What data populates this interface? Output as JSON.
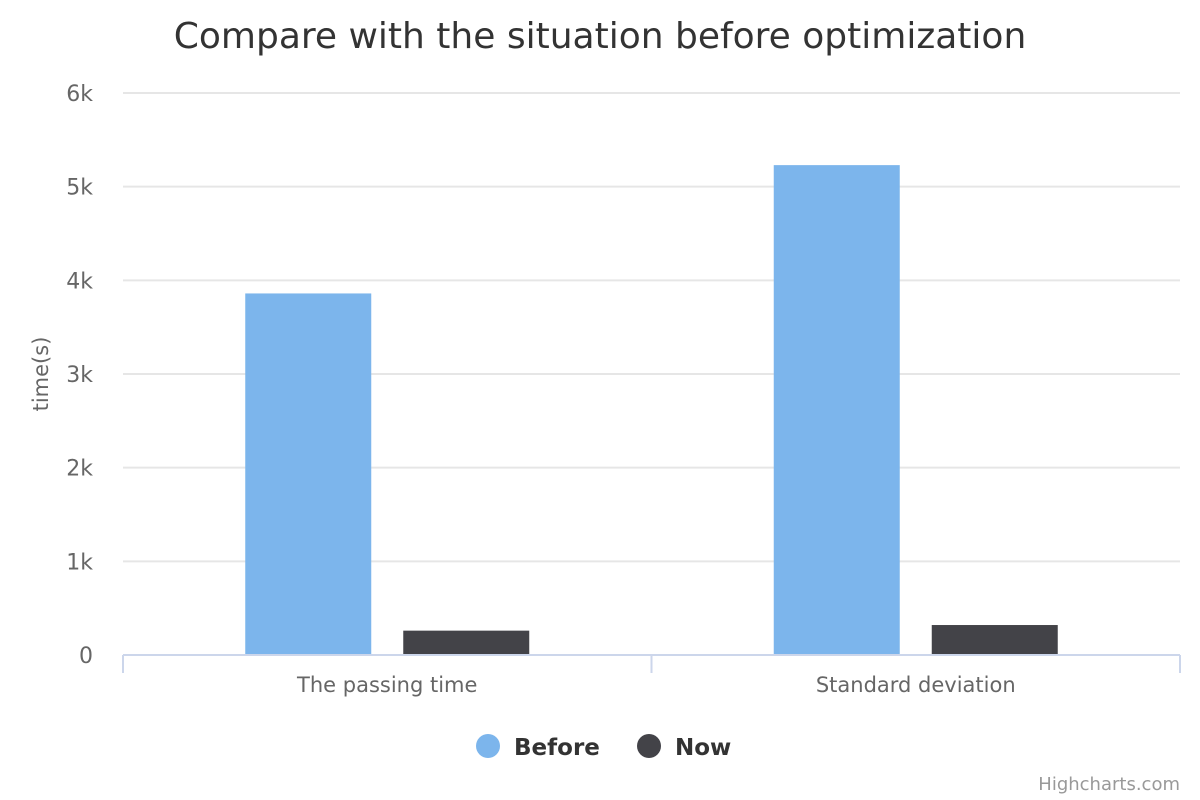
{
  "chart_data": {
    "type": "bar",
    "title": "Compare with the situation before optimization",
    "xlabel": "",
    "ylabel": "time(s)",
    "categories": [
      "The passing time",
      "Standard deviation"
    ],
    "series": [
      {
        "name": "Before",
        "color": "#7cb5ec",
        "values": [
          3860,
          5230
        ]
      },
      {
        "name": "Now",
        "color": "#434348",
        "values": [
          260,
          320
        ]
      }
    ],
    "ylim": [
      0,
      6000
    ],
    "yticks": [
      {
        "value": 0,
        "label": "0"
      },
      {
        "value": 1000,
        "label": "1k"
      },
      {
        "value": 2000,
        "label": "2k"
      },
      {
        "value": 3000,
        "label": "3k"
      },
      {
        "value": 4000,
        "label": "4k"
      },
      {
        "value": 5000,
        "label": "5k"
      },
      {
        "value": 6000,
        "label": "6k"
      }
    ],
    "grid": true,
    "legend_position": "bottom-center"
  },
  "credits": "Highcharts.com"
}
